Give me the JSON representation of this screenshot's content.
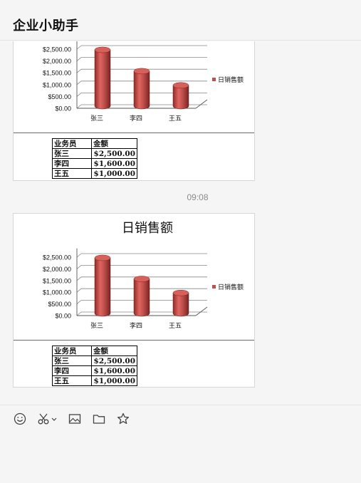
{
  "app": {
    "title": "企业小助手"
  },
  "messages": [
    {
      "chart_data": {
        "type": "bar",
        "title": "",
        "categories": [
          "张三",
          "李四",
          "王五"
        ],
        "series": [
          {
            "name": "日销售额",
            "values": [
              2500,
              1600,
              1000
            ]
          }
        ],
        "y_ticks": [
          "$0.00",
          "$500.00",
          "$1,000.00",
          "$1,500.00",
          "$2,000.00",
          "$2,500.00"
        ],
        "ylim": [
          0,
          3000
        ],
        "legend": "right",
        "grid": true,
        "bar_color": "#c0504d"
      },
      "table": {
        "headers": [
          "业务员",
          "金额"
        ],
        "rows": [
          [
            "张三",
            "$2,500.00"
          ],
          [
            "李四",
            "$1,600.00"
          ],
          [
            "王五",
            "$1,000.00"
          ]
        ]
      }
    },
    {
      "chart_data": {
        "type": "bar",
        "title": "日销售额",
        "categories": [
          "张三",
          "李四",
          "王五"
        ],
        "series": [
          {
            "name": "日销售额",
            "values": [
              2500,
              1600,
              1000
            ]
          }
        ],
        "y_ticks": [
          "$0.00",
          "$500.00",
          "$1,000.00",
          "$1,500.00",
          "$2,000.00",
          "$2,500.00"
        ],
        "ylim": [
          0,
          3000
        ],
        "legend": "right",
        "grid": true,
        "bar_color": "#c0504d"
      },
      "table": {
        "headers": [
          "业务员",
          "金额"
        ],
        "rows": [
          [
            "张三",
            "$2,500.00"
          ],
          [
            "李四",
            "$1,600.00"
          ],
          [
            "王五",
            "$1,000.00"
          ]
        ]
      }
    }
  ],
  "timestamp": "09:08",
  "toolbar": {
    "icons": [
      "emoji-icon",
      "scissors-icon",
      "chevron-down-icon",
      "image-icon",
      "folder-icon",
      "star-icon"
    ]
  }
}
